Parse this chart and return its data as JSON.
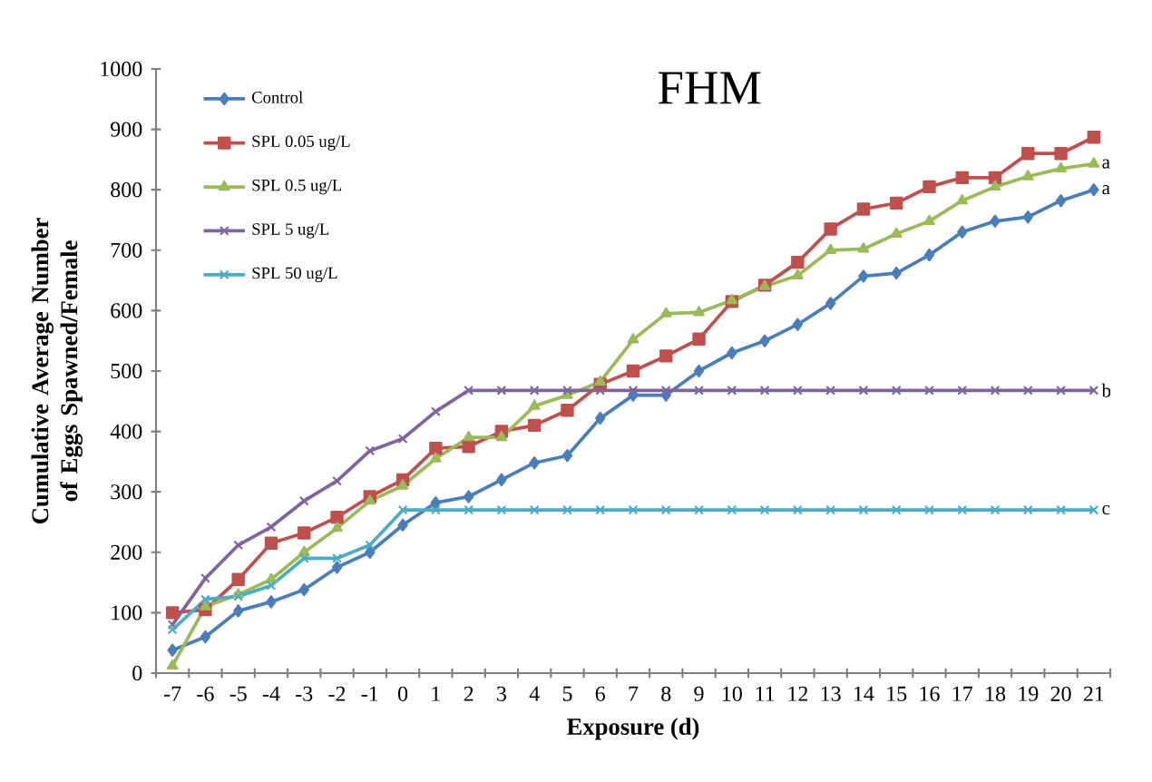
{
  "chart_data": {
    "type": "line",
    "title": "FHM",
    "xlabel": "Exposure (d)",
    "ylabel": "Cumulative Average Number of Eggs Spawned/Female",
    "categories": [
      "-7",
      "-6",
      "-5",
      "-4",
      "-3",
      "-2",
      "-1",
      "0",
      "1",
      "2",
      "3",
      "4",
      "5",
      "6",
      "7",
      "8",
      "9",
      "10",
      "11",
      "12",
      "13",
      "14",
      "15",
      "16",
      "17",
      "18",
      "19",
      "20",
      "21"
    ],
    "series": [
      {
        "name": "Control",
        "color": "#4a7ebb",
        "marker": "diamond",
        "values": [
          38,
          60,
          103,
          118,
          138,
          175,
          200,
          245,
          282,
          292,
          320,
          348,
          360,
          422,
          460,
          460,
          500,
          530,
          550,
          577,
          612,
          657,
          662,
          692,
          730,
          748,
          755,
          782,
          800
        ]
      },
      {
        "name": "SPL 0.05 ug/L",
        "color": "#c0504d",
        "marker": "square",
        "values": [
          100,
          105,
          155,
          215,
          232,
          258,
          292,
          320,
          372,
          375,
          400,
          410,
          435,
          478,
          500,
          525,
          553,
          615,
          642,
          680,
          735,
          768,
          778,
          805,
          820,
          820,
          860,
          860,
          887
        ]
      },
      {
        "name": "SPL 0.5 ug/L",
        "color": "#9bbb59",
        "marker": "triangle",
        "values": [
          12,
          110,
          130,
          155,
          200,
          240,
          285,
          310,
          355,
          390,
          390,
          442,
          460,
          482,
          552,
          595,
          597,
          617,
          640,
          658,
          700,
          702,
          727,
          748,
          782,
          805,
          822,
          835,
          843
        ]
      },
      {
        "name": "SPL 5 ug/L",
        "color": "#8064a2",
        "marker": "cross",
        "values": [
          80,
          157,
          212,
          242,
          285,
          318,
          368,
          388,
          433,
          468,
          468,
          468,
          468,
          468,
          468,
          468,
          468,
          468,
          468,
          468,
          468,
          468,
          468,
          468,
          468,
          468,
          468,
          468,
          468
        ]
      },
      {
        "name": "SPL 50 ug/L",
        "color": "#4bacc6",
        "marker": "cross",
        "values": [
          72,
          122,
          127,
          145,
          190,
          190,
          212,
          270,
          270,
          270,
          270,
          270,
          270,
          270,
          270,
          270,
          270,
          270,
          270,
          270,
          270,
          270,
          270,
          270,
          270,
          270,
          270,
          270,
          270
        ]
      }
    ],
    "annotations": [
      {
        "text": "a",
        "x": "21",
        "y": 843
      },
      {
        "text": "a",
        "x": "21",
        "y": 800
      },
      {
        "text": "b",
        "x": "21",
        "y": 468
      },
      {
        "text": "c",
        "x": "21",
        "y": 270
      }
    ],
    "ylim": [
      0,
      1000
    ],
    "yticks": [
      0,
      100,
      200,
      300,
      400,
      500,
      600,
      700,
      800,
      900,
      1000
    ],
    "grid": false,
    "legend": "top left",
    "line_style": "solid"
  }
}
